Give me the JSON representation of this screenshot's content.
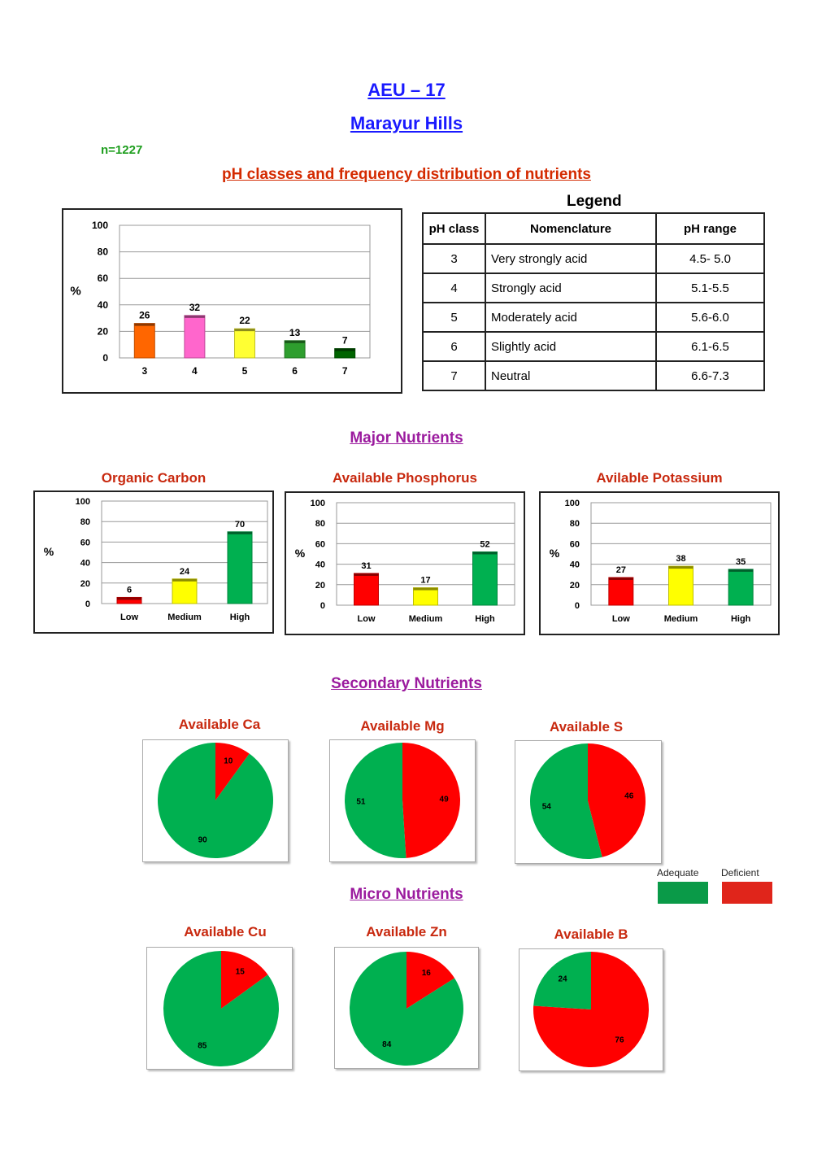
{
  "header": {
    "title": "AEU – 17",
    "subtitle": "Marayur Hills",
    "sample_count": "n=1227"
  },
  "ph_section": {
    "heading": "pH classes and frequency distribution of nutrients",
    "legend_title": "Legend",
    "table": {
      "headers": [
        "pH class",
        "Nomenclature",
        "pH range"
      ],
      "rows": [
        [
          "3",
          "Very strongly acid",
          "4.5- 5.0"
        ],
        [
          "4",
          "Strongly acid",
          "5.1-5.5"
        ],
        [
          "5",
          "Moderately acid",
          "5.6-6.0"
        ],
        [
          "6",
          "Slightly acid",
          "6.1-6.5"
        ],
        [
          "7",
          "Neutral",
          "6.6-7.3"
        ]
      ]
    }
  },
  "major": {
    "heading": "Major Nutrients"
  },
  "secondary": {
    "heading": "Secondary Nutrients"
  },
  "micro": {
    "heading": "Micro Nutrients"
  },
  "pie_legend": {
    "items": [
      {
        "label": "Adequate",
        "color": "#0a9a48"
      },
      {
        "label": "Deficient",
        "color": "#e0251b"
      }
    ]
  },
  "colors": {
    "adequate": "#00b050",
    "deficient": "#ff0000"
  },
  "chart_data": [
    {
      "id": "ph",
      "type": "bar",
      "title": "",
      "ylabel": "%",
      "ylim": [
        0,
        100
      ],
      "yticks": [
        0,
        20,
        40,
        60,
        80,
        100
      ],
      "categories": [
        "3",
        "4",
        "5",
        "6",
        "7"
      ],
      "values": [
        26,
        32,
        22,
        13,
        7
      ],
      "colors": [
        "#ff6600",
        "#ff66cc",
        "#ffff33",
        "#2e9e2e",
        "#006400"
      ],
      "grid": true
    },
    {
      "id": "oc",
      "type": "bar",
      "title": "Organic Carbon",
      "ylabel": "%",
      "ylim": [
        0,
        100
      ],
      "yticks": [
        0,
        20,
        40,
        60,
        80,
        100
      ],
      "categories": [
        "Low",
        "Medium",
        "High"
      ],
      "values": [
        6,
        24,
        70
      ],
      "colors": [
        "#ff0000",
        "#ffff00",
        "#00b050"
      ],
      "grid": true
    },
    {
      "id": "ap",
      "type": "bar",
      "title": "Available Phosphorus",
      "ylabel": "%",
      "ylim": [
        0,
        100
      ],
      "yticks": [
        0,
        20,
        40,
        60,
        80,
        100
      ],
      "categories": [
        "Low",
        "Medium",
        "High"
      ],
      "values": [
        31,
        17,
        52
      ],
      "colors": [
        "#ff0000",
        "#ffff00",
        "#00b050"
      ],
      "grid": true
    },
    {
      "id": "ak",
      "type": "bar",
      "title": "Avilable Potassium",
      "ylabel": "%",
      "ylim": [
        0,
        100
      ],
      "yticks": [
        0,
        20,
        40,
        60,
        80,
        100
      ],
      "categories": [
        "Low",
        "Medium",
        "High"
      ],
      "values": [
        27,
        38,
        35
      ],
      "colors": [
        "#ff0000",
        "#ffff00",
        "#00b050"
      ],
      "grid": true
    },
    {
      "id": "ca",
      "type": "pie",
      "title": "Available Ca",
      "labels": [
        "Adequate",
        "Deficient"
      ],
      "values": [
        90,
        10
      ]
    },
    {
      "id": "mg",
      "type": "pie",
      "title": "Available Mg",
      "labels": [
        "Adequate",
        "Deficient"
      ],
      "values": [
        51,
        49
      ]
    },
    {
      "id": "s",
      "type": "pie",
      "title": "Available S",
      "labels": [
        "Adequate",
        "Deficient"
      ],
      "values": [
        54,
        46
      ]
    },
    {
      "id": "cu",
      "type": "pie",
      "title": "Available Cu",
      "labels": [
        "Adequate",
        "Deficient"
      ],
      "values": [
        85,
        15
      ]
    },
    {
      "id": "zn",
      "type": "pie",
      "title": "Available Zn",
      "labels": [
        "Adequate",
        "Deficient"
      ],
      "values": [
        84,
        16
      ]
    },
    {
      "id": "b",
      "type": "pie",
      "title": "Available B",
      "labels": [
        "Adequate",
        "Deficient"
      ],
      "values": [
        24,
        76
      ]
    }
  ]
}
